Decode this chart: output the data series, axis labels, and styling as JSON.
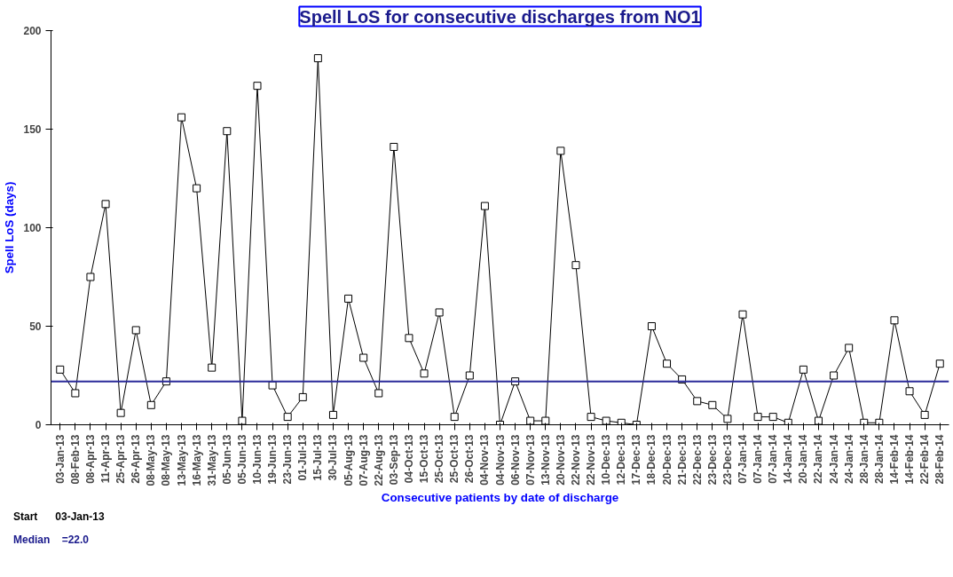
{
  "chart_data": {
    "type": "line",
    "title": "Spell LoS for consecutive discharges from NO1",
    "xlabel": "Consecutive patients by date of discharge",
    "ylabel": "Spell LoS (days)",
    "categories": [
      "03-Jan-13",
      "08-Feb-13",
      "08-Apr-13",
      "11-Apr-13",
      "25-Apr-13",
      "26-Apr-13",
      "08-May-13",
      "08-May-13",
      "13-May-13",
      "16-May-13",
      "31-May-13",
      "05-Jun-13",
      "05-Jun-13",
      "10-Jun-13",
      "19-Jun-13",
      "23-Jun-13",
      "01-Jul-13",
      "15-Jul-13",
      "30-Jul-13",
      "05-Aug-13",
      "07-Aug-13",
      "22-Aug-13",
      "03-Sep-13",
      "04-Oct-13",
      "15-Oct-13",
      "25-Oct-13",
      "25-Oct-13",
      "26-Oct-13",
      "04-Nov-13",
      "04-Nov-13",
      "06-Nov-13",
      "07-Nov-13",
      "13-Nov-13",
      "20-Nov-13",
      "22-Nov-13",
      "22-Nov-13",
      "10-Dec-13",
      "12-Dec-13",
      "17-Dec-13",
      "18-Dec-13",
      "20-Dec-13",
      "21-Dec-13",
      "22-Dec-13",
      "23-Dec-13",
      "23-Dec-13",
      "07-Jan-14",
      "07-Jan-14",
      "07-Jan-14",
      "14-Jan-14",
      "20-Jan-14",
      "22-Jan-14",
      "24-Jan-14",
      "24-Jan-14",
      "28-Jan-14",
      "28-Jan-14",
      "14-Feb-14",
      "14-Feb-14",
      "22-Feb-14",
      "28-Feb-14"
    ],
    "series": [
      {
        "color": "#000000",
        "values": [
          28,
          16,
          75,
          112,
          6,
          48,
          10,
          22,
          156,
          120,
          29,
          149,
          2,
          172,
          20,
          4,
          14,
          186,
          5,
          64,
          34,
          16,
          141,
          44,
          26,
          57,
          4,
          25,
          111,
          0,
          22,
          2,
          2,
          139,
          81,
          4,
          2,
          1,
          0,
          50,
          31,
          23,
          12,
          10,
          3,
          56,
          4,
          4,
          1,
          28,
          2,
          25,
          39,
          1,
          1,
          53,
          17,
          5,
          31
        ]
      }
    ],
    "ylim": [
      0,
      200
    ],
    "yticks": [
      0,
      50,
      100,
      150,
      200
    ],
    "grid": false,
    "marker": "square",
    "line_style": "solid",
    "ref_lines": [
      {
        "axis": "y",
        "value": 22,
        "color": "#2b2b9a"
      }
    ],
    "annotations": [
      "Start      03-Jan-13",
      "Median    =22.0"
    ]
  }
}
